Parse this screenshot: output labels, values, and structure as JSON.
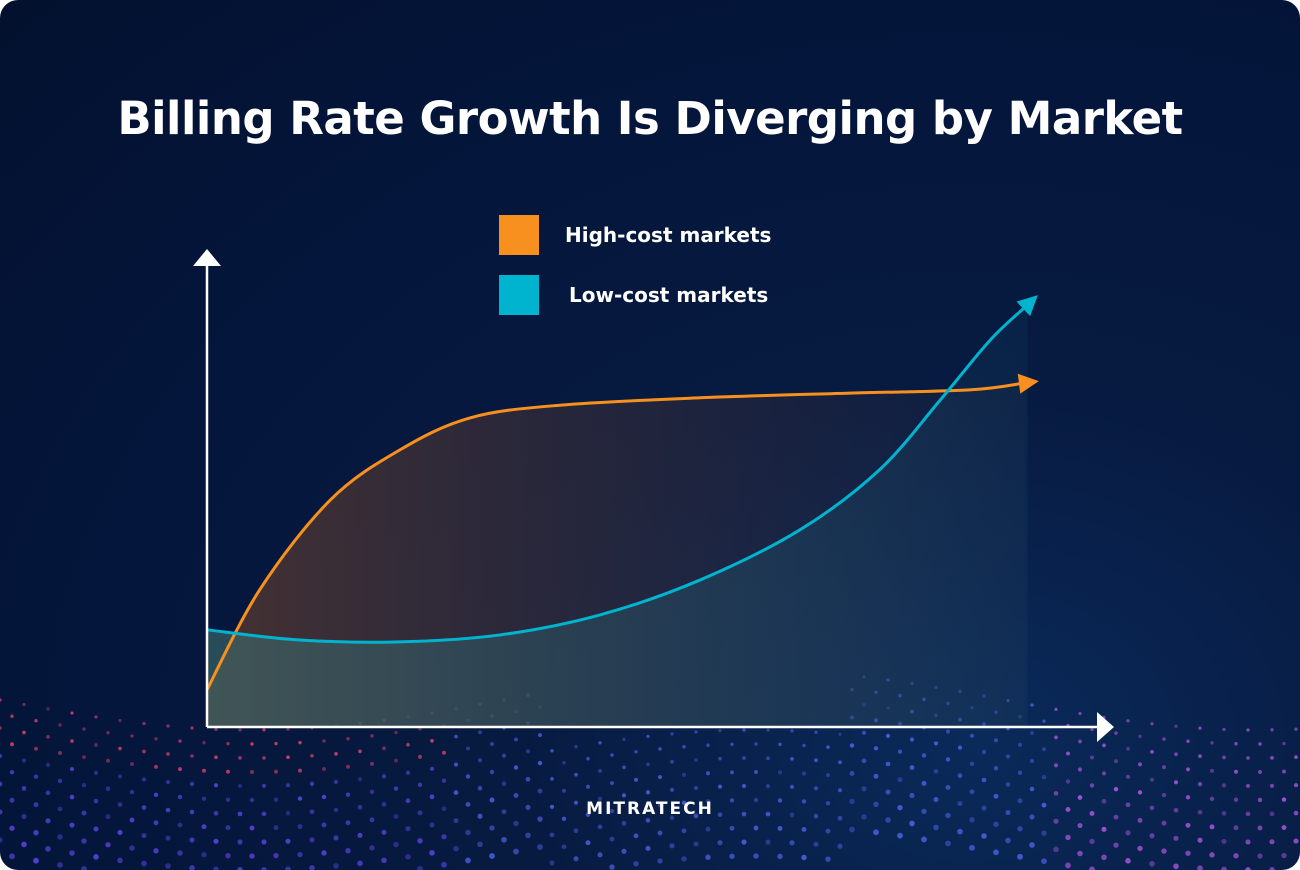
{
  "chart_data": {
    "type": "line",
    "title": "Billing Rate Growth Is Diverging by Market",
    "xlabel": "",
    "ylabel": "",
    "xlim": [
      0,
      100
    ],
    "ylim": [
      0,
      100
    ],
    "grid": false,
    "axis_ticks": false,
    "legend_position": "top-center",
    "series": [
      {
        "name": "High-cost markets",
        "color": "#f7901e",
        "x": [
          0,
          5.9,
          13.8,
          21.6,
          29.5,
          39.5,
          55.2,
          72,
          85.4,
          91.6
        ],
        "y": [
          8,
          29.5,
          48.8,
          59.6,
          66.5,
          69.2,
          70.8,
          71.8,
          72.5,
          74
        ]
      },
      {
        "name": "Low-cost markets",
        "color": "#00b4d0",
        "x": [
          0,
          10.4,
          21.6,
          32.8,
          44,
          55.2,
          66.4,
          75.3,
          82.1,
          87.7,
          91.9
        ],
        "y": [
          20.9,
          18.7,
          18.3,
          19.8,
          24.1,
          31.6,
          42.4,
          55.3,
          70.3,
          83.2,
          90.8
        ]
      }
    ]
  },
  "logo": {
    "text": "MITRATECH"
  }
}
